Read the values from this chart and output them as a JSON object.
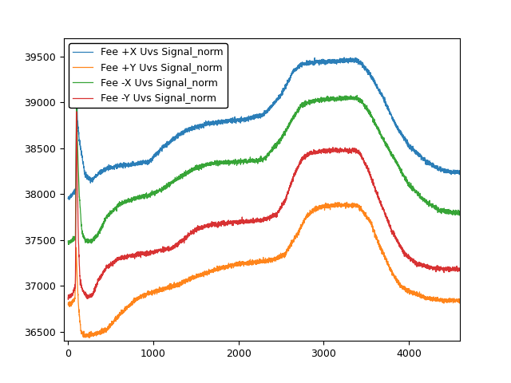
{
  "legend_labels": [
    "Fee +X Uvs Signal_norm",
    "Fee +Y Uvs Signal_norm",
    "Fee -X Uvs Signal_norm",
    "Fee -Y Uvs Signal_norm"
  ],
  "colors": [
    "#1f77b4",
    "#ff7f0e",
    "#2ca02c",
    "#d62728"
  ],
  "xlim": [
    -50,
    4600
  ],
  "ylim": [
    36400,
    39700
  ],
  "figsize": [
    6.4,
    4.8
  ],
  "dpi": 100
}
